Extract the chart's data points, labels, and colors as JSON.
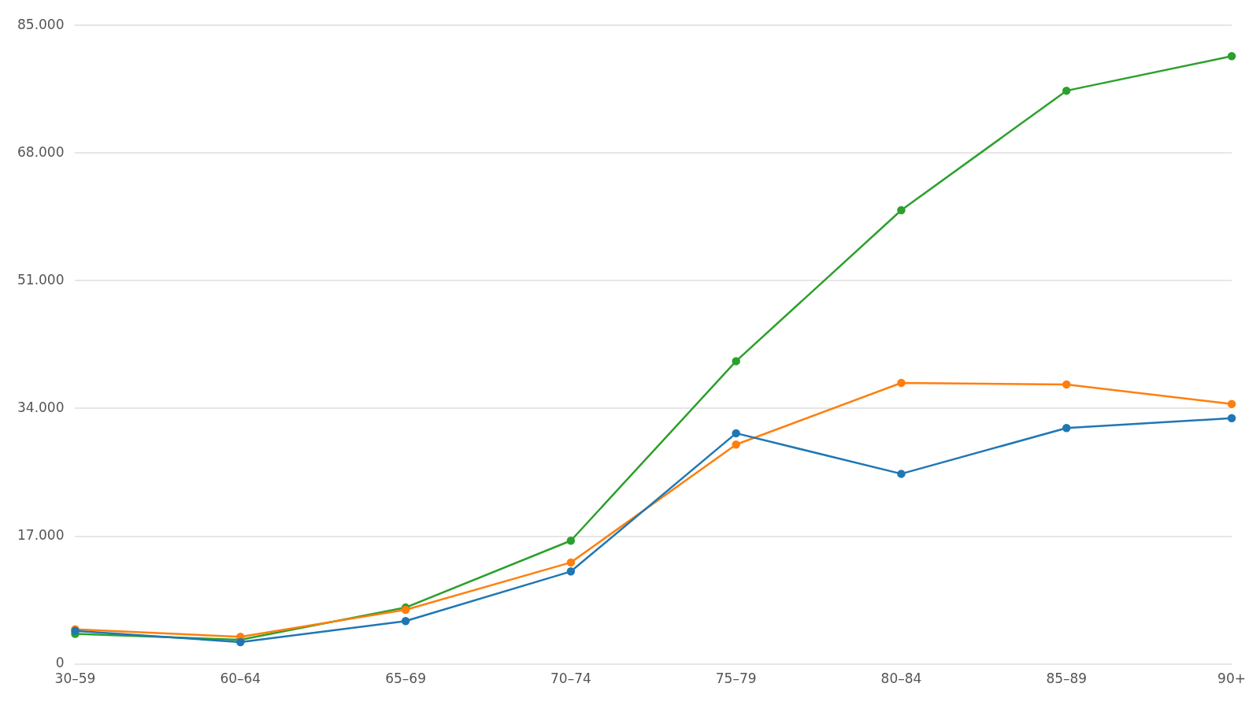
{
  "chart_data": {
    "type": "line",
    "categories": [
      "30–59",
      "60–64",
      "65–69",
      "70–74",
      "75–79",
      "80–84",
      "85–89",
      "90+"
    ],
    "series": [
      {
        "color": "#1f77b4",
        "values": [
          4400,
          2900,
          5700,
          12300,
          30700,
          25300,
          31400,
          32700
        ]
      },
      {
        "color": "#ff7f0e",
        "values": [
          4600,
          3600,
          7200,
          13500,
          29200,
          37400,
          37200,
          34600
        ]
      },
      {
        "color": "#2ca02c",
        "values": [
          4000,
          3200,
          7500,
          16400,
          40300,
          60400,
          76300,
          80900
        ]
      }
    ],
    "ylim": [
      0,
      85000
    ],
    "yticks": [
      {
        "value": 0,
        "label": "0"
      },
      {
        "value": 17000,
        "label": "17.000"
      },
      {
        "value": 34000,
        "label": "34.000"
      },
      {
        "value": 51000,
        "label": "51.000"
      },
      {
        "value": 68000,
        "label": "68.000"
      },
      {
        "value": 85000,
        "label": "85.000"
      }
    ],
    "grid": "y",
    "legend": false,
    "marker": "circle",
    "line_style": "solid"
  }
}
